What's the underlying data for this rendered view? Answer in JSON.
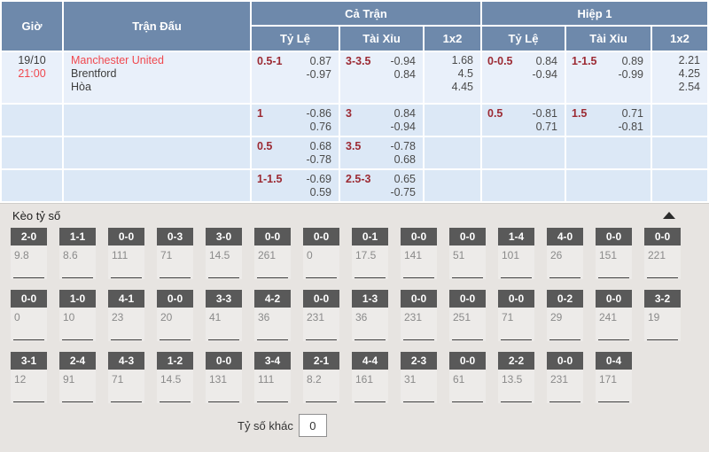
{
  "colors": {
    "header_blue": "#6e89ab",
    "row_light_blue": "#e9f0fa",
    "row_blue": "#dce8f6",
    "accent_red": "#f0484e",
    "handicap_maroon": "#9c2a33",
    "score_button_gray": "#595959",
    "section_bg": "#e7e4e1"
  },
  "odds_table": {
    "headers": {
      "time": "Giờ",
      "match": "Trận Đấu",
      "full_match": "Cả Trận",
      "first_half": "Hiệp 1",
      "handicap": "Tỷ Lệ",
      "over_under": "Tài Xỉu",
      "one_x_two": "1x2"
    },
    "match": {
      "date": "19/10",
      "time": "21:00",
      "home": "Manchester United",
      "away": "Brentford",
      "draw": "Hòa"
    },
    "rows": [
      {
        "full": {
          "hdp": "0.5-1",
          "hdp_odds": [
            "0.87",
            "-0.97"
          ],
          "ou": "3-3.5",
          "ou_odds": [
            "-0.94",
            "0.84"
          ],
          "x12": [
            "1.68",
            "4.5",
            "4.45"
          ]
        },
        "half": {
          "hdp": "0-0.5",
          "hdp_odds": [
            "0.84",
            "-0.94"
          ],
          "ou": "1-1.5",
          "ou_odds": [
            "0.89",
            "-0.99"
          ],
          "x12": [
            "2.21",
            "4.25",
            "2.54"
          ]
        }
      },
      {
        "full": {
          "hdp": "1",
          "hdp_odds": [
            "-0.86",
            "0.76"
          ],
          "ou": "3",
          "ou_odds": [
            "0.84",
            "-0.94"
          ],
          "x12": []
        },
        "half": {
          "hdp": "0.5",
          "hdp_odds": [
            "-0.81",
            "0.71"
          ],
          "ou": "1.5",
          "ou_odds": [
            "0.71",
            "-0.81"
          ],
          "x12": []
        }
      },
      {
        "full": {
          "hdp": "0.5",
          "hdp_odds": [
            "0.68",
            "-0.78"
          ],
          "ou": "3.5",
          "ou_odds": [
            "-0.78",
            "0.68"
          ],
          "x12": []
        },
        "half": {
          "hdp": "",
          "hdp_odds": [],
          "ou": "",
          "ou_odds": [],
          "x12": []
        }
      },
      {
        "full": {
          "hdp": "1-1.5",
          "hdp_odds": [
            "-0.69",
            "0.59"
          ],
          "ou": "2.5-3",
          "ou_odds": [
            "0.65",
            "-0.75"
          ],
          "x12": []
        },
        "half": {
          "hdp": "",
          "hdp_odds": [],
          "ou": "",
          "ou_odds": [],
          "x12": []
        }
      }
    ]
  },
  "correct_score": {
    "title": "Kèo tỷ số",
    "other_label": "Tỷ số khác",
    "other_value": "0",
    "rows": [
      [
        {
          "score": "2-0",
          "odds": "9.8"
        },
        {
          "score": "1-1",
          "odds": "8.6"
        },
        {
          "score": "0-0",
          "odds": "111"
        },
        {
          "score": "0-3",
          "odds": "71"
        },
        {
          "score": "3-0",
          "odds": "14.5"
        },
        {
          "score": "0-0",
          "odds": "261"
        },
        {
          "score": "0-0",
          "odds": "0"
        },
        {
          "score": "0-1",
          "odds": "17.5"
        },
        {
          "score": "0-0",
          "odds": "141"
        },
        {
          "score": "0-0",
          "odds": "51"
        },
        {
          "score": "1-4",
          "odds": "101"
        },
        {
          "score": "4-0",
          "odds": "26"
        },
        {
          "score": "0-0",
          "odds": "151"
        },
        {
          "score": "0-0",
          "odds": "221"
        }
      ],
      [
        {
          "score": "0-0",
          "odds": "0"
        },
        {
          "score": "1-0",
          "odds": "10"
        },
        {
          "score": "4-1",
          "odds": "23"
        },
        {
          "score": "0-0",
          "odds": "20"
        },
        {
          "score": "3-3",
          "odds": "41"
        },
        {
          "score": "4-2",
          "odds": "36"
        },
        {
          "score": "0-0",
          "odds": "231"
        },
        {
          "score": "1-3",
          "odds": "36"
        },
        {
          "score": "0-0",
          "odds": "231"
        },
        {
          "score": "0-0",
          "odds": "251"
        },
        {
          "score": "0-0",
          "odds": "71"
        },
        {
          "score": "0-2",
          "odds": "29"
        },
        {
          "score": "0-0",
          "odds": "241"
        },
        {
          "score": "3-2",
          "odds": "19"
        }
      ],
      [
        {
          "score": "3-1",
          "odds": "12"
        },
        {
          "score": "2-4",
          "odds": "91"
        },
        {
          "score": "4-3",
          "odds": "71"
        },
        {
          "score": "1-2",
          "odds": "14.5"
        },
        {
          "score": "0-0",
          "odds": "131"
        },
        {
          "score": "3-4",
          "odds": "111"
        },
        {
          "score": "2-1",
          "odds": "8.2"
        },
        {
          "score": "4-4",
          "odds": "161"
        },
        {
          "score": "2-3",
          "odds": "31"
        },
        {
          "score": "0-0",
          "odds": "61"
        },
        {
          "score": "2-2",
          "odds": "13.5"
        },
        {
          "score": "0-0",
          "odds": "231"
        },
        {
          "score": "0-4",
          "odds": "171"
        }
      ]
    ]
  }
}
